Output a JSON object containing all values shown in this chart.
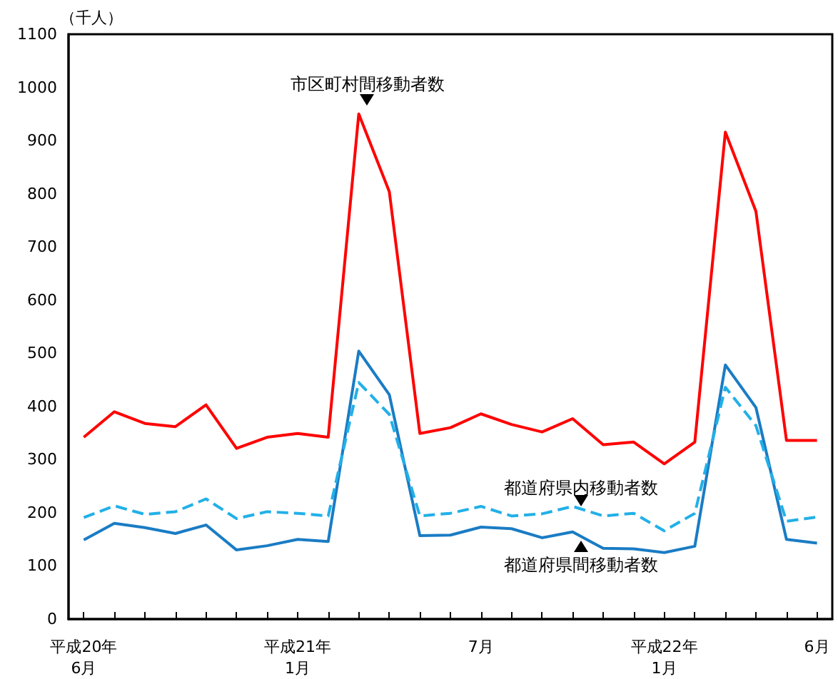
{
  "chart_data": {
    "type": "line",
    "ylabel": "（千人）",
    "categories": [
      "平成20年\n6月",
      null,
      null,
      null,
      null,
      null,
      null,
      "平成21年\n1月",
      null,
      null,
      null,
      null,
      null,
      "7月",
      null,
      null,
      null,
      null,
      null,
      "平成22年\n1月",
      null,
      null,
      null,
      null,
      "6月"
    ],
    "ylim": [
      0,
      1100
    ],
    "yticks": [
      0,
      100,
      200,
      300,
      400,
      500,
      600,
      700,
      800,
      900,
      {
        "value": 1000,
        "label": "1000"
      },
      {
        "value": 1100,
        "label": "1100"
      }
    ],
    "grid": false,
    "legend": false,
    "marker": "none",
    "series": [
      {
        "name": "市区町村間移動者数",
        "color": "#ff0000",
        "line_style": "solid",
        "values": [
          342,
          390,
          368,
          362,
          403,
          321,
          342,
          349,
          342,
          950,
          804,
          349,
          360,
          386,
          366,
          352,
          377,
          328,
          333,
          292,
          333,
          916,
          767,
          336,
          336
        ]
      },
      {
        "name": "都道府県内移動者数",
        "color": "#22b0e8",
        "line_style": "dashed",
        "values": [
          191,
          213,
          197,
          202,
          226,
          189,
          202,
          199,
          194,
          445,
          385,
          194,
          199,
          212,
          194,
          198,
          212,
          194,
          199,
          166,
          199,
          436,
          364,
          184,
          192
        ]
      },
      {
        "name": "都道府県間移動者数",
        "color": "#1a7cc4",
        "line_style": "solid",
        "values": [
          149,
          180,
          172,
          161,
          177,
          130,
          138,
          150,
          146,
          504,
          422,
          157,
          158,
          173,
          170,
          153,
          164,
          133,
          132,
          125,
          137,
          478,
          398,
          150,
          143
        ]
      }
    ]
  }
}
